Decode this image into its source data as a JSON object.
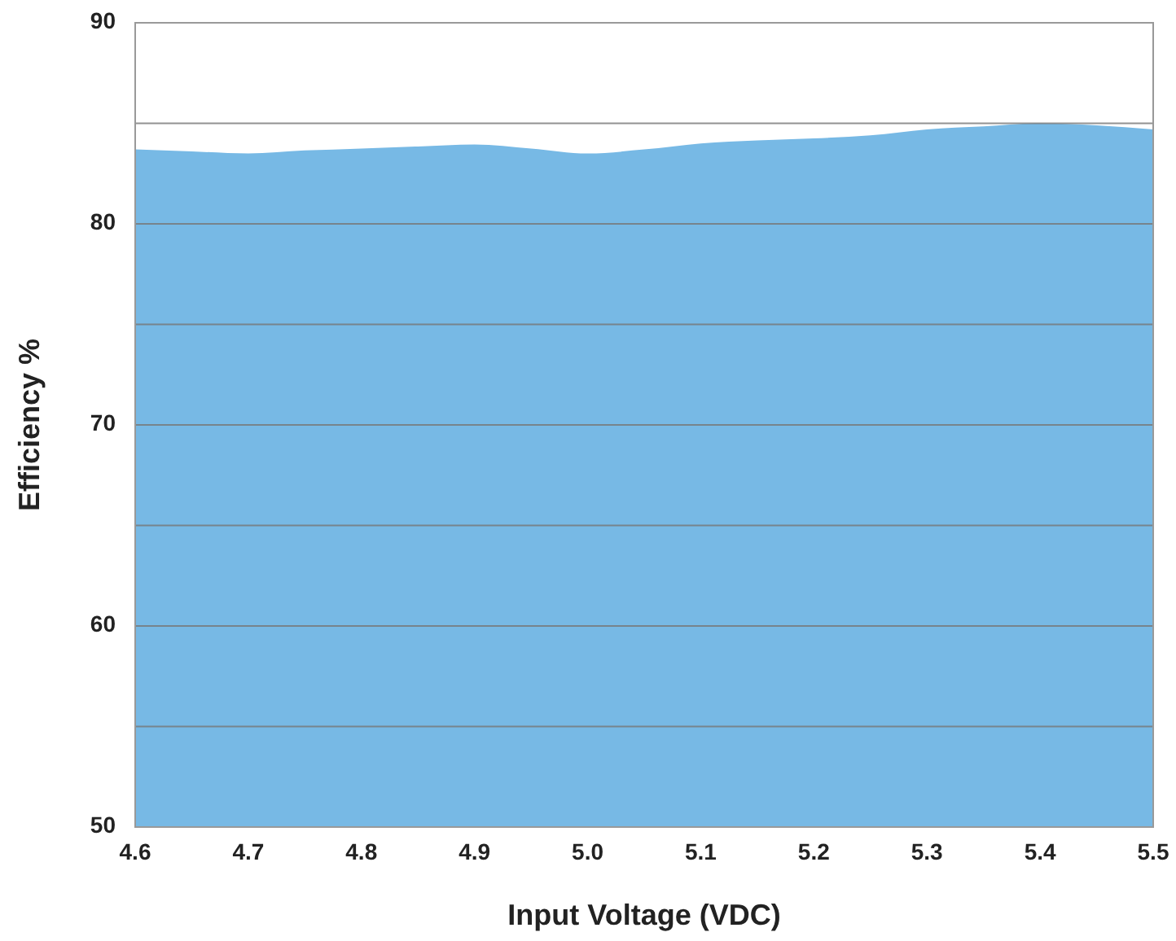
{
  "chart_data": {
    "type": "area",
    "xlabel": "Input Voltage (VDC)",
    "ylabel": "Efficiency %",
    "x": [
      4.6,
      4.65,
      4.7,
      4.75,
      4.8,
      4.85,
      4.9,
      4.95,
      5.0,
      5.05,
      5.1,
      5.15,
      5.2,
      5.25,
      5.3,
      5.35,
      5.4,
      5.45,
      5.5
    ],
    "series": [
      {
        "color": "#77b9e5",
        "values": [
          83.7,
          83.6,
          83.5,
          83.65,
          83.75,
          83.85,
          83.95,
          83.75,
          83.5,
          83.7,
          84.0,
          84.15,
          84.25,
          84.4,
          84.7,
          84.85,
          85.0,
          84.9,
          84.7
        ]
      }
    ],
    "xlim": [
      4.6,
      5.5
    ],
    "xticks": [
      {
        "value": 4.6,
        "label": "4.6"
      },
      {
        "value": 4.7,
        "label": "4.7"
      },
      {
        "value": 4.8,
        "label": "4.8"
      },
      {
        "value": 4.9,
        "label": "4.9"
      },
      {
        "value": 5.0,
        "label": "5.0"
      },
      {
        "value": 5.1,
        "label": "5.1"
      },
      {
        "value": 5.2,
        "label": "5.2"
      },
      {
        "value": 5.3,
        "label": "5.3"
      },
      {
        "value": 5.4,
        "label": "5.4"
      },
      {
        "value": 5.5,
        "label": "5.5"
      }
    ],
    "ylim": [
      50,
      90
    ],
    "yticks": [
      50,
      {
        "value": 55,
        "label": null
      },
      60,
      {
        "value": 65,
        "label": null
      },
      70,
      {
        "value": 75,
        "label": null
      },
      80,
      {
        "value": 85,
        "label": null
      },
      90
    ],
    "grid": "y"
  }
}
